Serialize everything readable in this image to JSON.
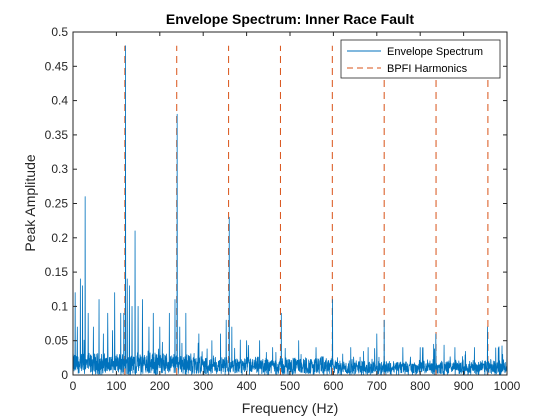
{
  "chart_data": {
    "type": "line",
    "title": "Envelope Spectrum: Inner Race Fault",
    "xlabel": "Frequency (Hz)",
    "ylabel": "Peak Amplitude",
    "xlim": [
      0,
      1000
    ],
    "ylim": [
      0,
      0.5
    ],
    "xticks": [
      "0",
      "100",
      "200",
      "300",
      "400",
      "500",
      "600",
      "700",
      "800",
      "900",
      "1000"
    ],
    "yticks": [
      "0",
      "0.05",
      "0.1",
      "0.15",
      "0.2",
      "0.25",
      "0.3",
      "0.35",
      "0.4",
      "0.45",
      "0.5"
    ],
    "grid": false,
    "legend_position": "top-right",
    "series": [
      {
        "name": "Envelope Spectrum",
        "color": "#0072BD",
        "style": "solid",
        "noise_floor": 0.02,
        "peaks": [
          {
            "x": 5,
            "y": 0.12
          },
          {
            "x": 10,
            "y": 0.07
          },
          {
            "x": 17,
            "y": 0.14
          },
          {
            "x": 22,
            "y": 0.13
          },
          {
            "x": 28,
            "y": 0.26
          },
          {
            "x": 35,
            "y": 0.09
          },
          {
            "x": 47,
            "y": 0.07
          },
          {
            "x": 60,
            "y": 0.11
          },
          {
            "x": 70,
            "y": 0.06
          },
          {
            "x": 80,
            "y": 0.09
          },
          {
            "x": 96,
            "y": 0.12
          },
          {
            "x": 110,
            "y": 0.09
          },
          {
            "x": 117,
            "y": 0.09
          },
          {
            "x": 121,
            "y": 0.48
          },
          {
            "x": 125,
            "y": 0.14
          },
          {
            "x": 130,
            "y": 0.13
          },
          {
            "x": 136,
            "y": 0.1
          },
          {
            "x": 143,
            "y": 0.21
          },
          {
            "x": 150,
            "y": 0.1
          },
          {
            "x": 160,
            "y": 0.11
          },
          {
            "x": 175,
            "y": 0.07
          },
          {
            "x": 185,
            "y": 0.09
          },
          {
            "x": 200,
            "y": 0.07
          },
          {
            "x": 222,
            "y": 0.09
          },
          {
            "x": 235,
            "y": 0.11
          },
          {
            "x": 240,
            "y": 0.38
          },
          {
            "x": 246,
            "y": 0.07
          },
          {
            "x": 260,
            "y": 0.09
          },
          {
            "x": 290,
            "y": 0.06
          },
          {
            "x": 320,
            "y": 0.05
          },
          {
            "x": 340,
            "y": 0.06
          },
          {
            "x": 353,
            "y": 0.08
          },
          {
            "x": 360,
            "y": 0.23
          },
          {
            "x": 366,
            "y": 0.07
          },
          {
            "x": 400,
            "y": 0.05
          },
          {
            "x": 430,
            "y": 0.05
          },
          {
            "x": 460,
            "y": 0.04
          },
          {
            "x": 480,
            "y": 0.09
          },
          {
            "x": 520,
            "y": 0.05
          },
          {
            "x": 560,
            "y": 0.04
          },
          {
            "x": 598,
            "y": 0.11
          },
          {
            "x": 640,
            "y": 0.04
          },
          {
            "x": 680,
            "y": 0.04
          },
          {
            "x": 700,
            "y": 0.06
          },
          {
            "x": 717,
            "y": 0.08
          },
          {
            "x": 760,
            "y": 0.04
          },
          {
            "x": 800,
            "y": 0.04
          },
          {
            "x": 836,
            "y": 0.06
          },
          {
            "x": 880,
            "y": 0.04
          },
          {
            "x": 925,
            "y": 0.04
          },
          {
            "x": 955,
            "y": 0.07
          },
          {
            "x": 990,
            "y": 0.03
          }
        ]
      },
      {
        "name": "BPFI Harmonics",
        "color": "#D95319",
        "style": "dashed",
        "x": [
          119.5,
          239,
          358.5,
          478,
          597.5,
          717,
          836.5,
          956
        ],
        "y_top": 0.48
      }
    ]
  }
}
